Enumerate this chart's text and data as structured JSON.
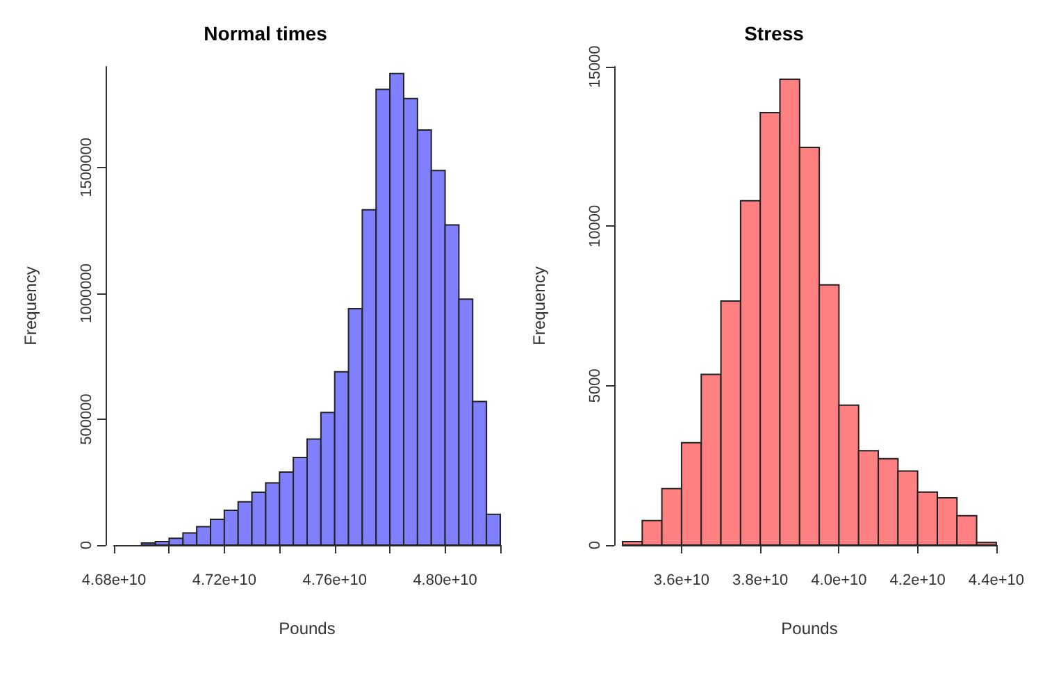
{
  "chart_data": [
    {
      "type": "histogram",
      "title": "Normal times",
      "xlabel": "Pounds",
      "ylabel": "Frequency",
      "color": "#8080ff",
      "bins": [
        46850000000,
        46900000000,
        46950000000,
        47000000000,
        47050000000,
        47100000000,
        47150000000,
        47200000000,
        47250000000,
        47300000000,
        47350000000,
        47400000000,
        47450000000,
        47500000000,
        47550000000,
        47600000000,
        47650000000,
        47700000000,
        47750000000,
        47800000000,
        47850000000,
        47900000000,
        47950000000,
        48000000000,
        48050000000,
        48100000000,
        48150000000,
        48200000000
      ],
      "values": [
        null,
        8000,
        14000,
        27000,
        48000,
        73000,
        102000,
        138000,
        172000,
        210000,
        247000,
        290000,
        348000,
        421000,
        527000,
        688000,
        939000,
        1332000,
        1810000,
        1873000,
        1774000,
        1649000,
        1488000,
        1272000,
        977000,
        570000,
        122000
      ],
      "xlim": [
        46800000000,
        48200000000
      ],
      "xticks": [
        {
          "value": 46800000000,
          "label": "4.68e+10"
        },
        {
          "value": 47000000000,
          "label": null
        },
        {
          "value": 47200000000,
          "label": "4.72e+10"
        },
        {
          "value": 47400000000,
          "label": null
        },
        {
          "value": 47600000000,
          "label": "4.76e+10"
        },
        {
          "value": 47800000000,
          "label": null
        },
        {
          "value": 48000000000,
          "label": "4.80e+10"
        },
        {
          "value": 48200000000,
          "label": null
        }
      ],
      "ylim": [
        0,
        1900000
      ],
      "yticks": [
        0,
        500000,
        1000000,
        1500000
      ]
    },
    {
      "type": "histogram",
      "title": "Stress",
      "xlabel": "Pounds",
      "ylabel": "Frequency",
      "color": "#ff8080",
      "bins": [
        34500000000,
        35000000000,
        35500000000,
        36000000000,
        36500000000,
        37000000000,
        37500000000,
        38000000000,
        38500000000,
        39000000000,
        39500000000,
        40000000000,
        40500000000,
        41000000000,
        41500000000,
        42000000000,
        42500000000,
        43000000000,
        43500000000,
        44000000000
      ],
      "values": [
        110,
        770,
        1770,
        3210,
        5350,
        7650,
        10800,
        13560,
        14610,
        12470,
        8160,
        4390,
        2960,
        2710,
        2320,
        1660,
        1480,
        920,
        80
      ],
      "xlim": [
        34500000000,
        44000000000
      ],
      "xticks": [
        {
          "value": 36000000000,
          "label": "3.6e+10"
        },
        {
          "value": 38000000000,
          "label": "3.8e+10"
        },
        {
          "value": 40000000000,
          "label": "4.0e+10"
        },
        {
          "value": 42000000000,
          "label": "4.2e+10"
        },
        {
          "value": 44000000000,
          "label": "4.4e+10"
        }
      ],
      "ylim": [
        0,
        15000
      ],
      "yticks": [
        0,
        5000,
        10000,
        15000
      ]
    }
  ]
}
